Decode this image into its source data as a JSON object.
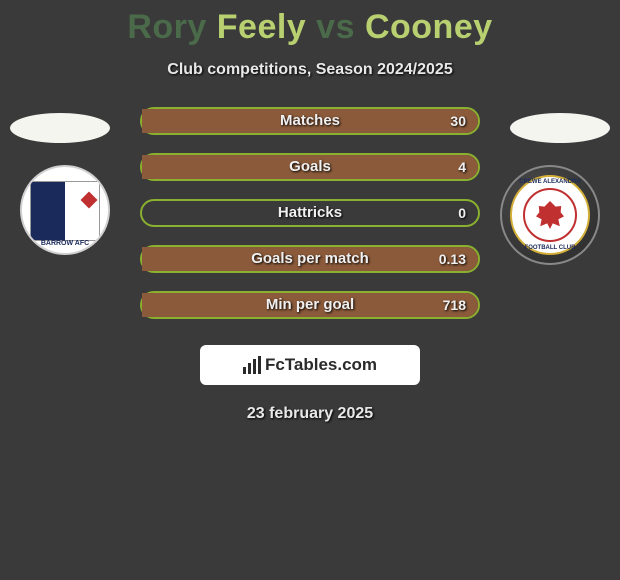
{
  "title": {
    "player1_first": "Rory",
    "player1_last": "Feely",
    "vs": "vs",
    "player2": "Cooney"
  },
  "subtitle": "Club competitions, Season 2024/2025",
  "colors": {
    "bar_border": "#8ab030",
    "player1_fill": "#4a6a4a",
    "player2_fill": "#8a5a3a",
    "background": "#3a3a3a"
  },
  "club_left": {
    "name_label": "BARROW AFC"
  },
  "club_right": {
    "ring_top": "CREWE ALEXANDRA",
    "ring_bottom": "FOOTBALL CLUB"
  },
  "stats": [
    {
      "label": "Matches",
      "left_val": "",
      "right_val": "30",
      "left_pct": 0,
      "right_pct": 100
    },
    {
      "label": "Goals",
      "left_val": "",
      "right_val": "4",
      "left_pct": 0,
      "right_pct": 100
    },
    {
      "label": "Hattricks",
      "left_val": "",
      "right_val": "0",
      "left_pct": 0,
      "right_pct": 0
    },
    {
      "label": "Goals per match",
      "left_val": "",
      "right_val": "0.13",
      "left_pct": 0,
      "right_pct": 100
    },
    {
      "label": "Min per goal",
      "left_val": "",
      "right_val": "718",
      "left_pct": 0,
      "right_pct": 100
    }
  ],
  "footer_brand": "FcTables.com",
  "date": "23 february 2025"
}
